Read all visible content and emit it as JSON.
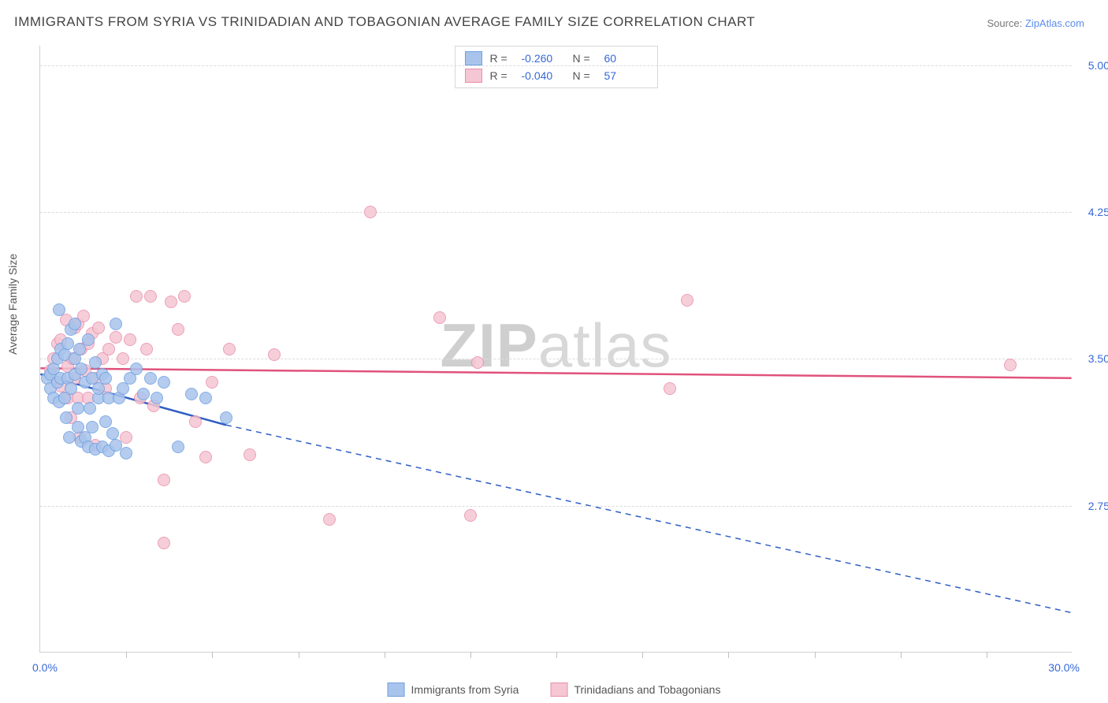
{
  "title": "IMMIGRANTS FROM SYRIA VS TRINIDADIAN AND TOBAGONIAN AVERAGE FAMILY SIZE CORRELATION CHART",
  "source_prefix": "Source: ",
  "source_link": "ZipAtlas.com",
  "ylabel": "Average Family Size",
  "watermark": {
    "bold": "ZIP",
    "light": "atlas"
  },
  "chart": {
    "type": "scatter",
    "xlim": [
      0,
      30
    ],
    "ylim": [
      2.0,
      5.1
    ],
    "xmin_label": "0.0%",
    "xmax_label": "30.0%",
    "ytick_labels": [
      "2.75",
      "3.50",
      "4.25",
      "5.00"
    ],
    "ytick_values": [
      2.75,
      3.5,
      4.25,
      5.0
    ],
    "xtick_values": [
      2.5,
      5.0,
      7.5,
      10.0,
      12.5,
      15.0,
      17.5,
      20.0,
      22.5,
      25.0,
      27.5
    ],
    "background": "#ffffff",
    "grid_color": "#dcdcdc",
    "axis_color": "#d0d0d0",
    "tick_label_color": "#3668d8",
    "marker_radius": 8,
    "marker_border": 1.5,
    "series": [
      {
        "name": "Immigrants from Syria",
        "color_fill": "#a9c4ec",
        "color_stroke": "#6f9fe0",
        "r_label": "R = ",
        "r_value": "-0.260",
        "n_label": "N = ",
        "n_value": "60",
        "trend": {
          "x1": 0,
          "y1": 3.42,
          "x2": 5.4,
          "y2": 3.16,
          "dash_x2": 30,
          "dash_y2": 2.2,
          "color": "#2f5ec4",
          "width": 2.5
        },
        "points": [
          [
            0.2,
            3.4
          ],
          [
            0.3,
            3.35
          ],
          [
            0.3,
            3.42
          ],
          [
            0.4,
            3.3
          ],
          [
            0.4,
            3.45
          ],
          [
            0.5,
            3.5
          ],
          [
            0.5,
            3.38
          ],
          [
            0.55,
            3.75
          ],
          [
            0.55,
            3.28
          ],
          [
            0.6,
            3.55
          ],
          [
            0.6,
            3.4
          ],
          [
            0.7,
            3.52
          ],
          [
            0.7,
            3.3
          ],
          [
            0.75,
            3.2
          ],
          [
            0.8,
            3.58
          ],
          [
            0.8,
            3.4
          ],
          [
            0.85,
            3.1
          ],
          [
            0.9,
            3.65
          ],
          [
            0.9,
            3.35
          ],
          [
            1.0,
            3.68
          ],
          [
            1.0,
            3.42
          ],
          [
            1.0,
            3.5
          ],
          [
            1.1,
            3.25
          ],
          [
            1.1,
            3.15
          ],
          [
            1.15,
            3.55
          ],
          [
            1.2,
            3.45
          ],
          [
            1.2,
            3.08
          ],
          [
            1.3,
            3.38
          ],
          [
            1.3,
            3.1
          ],
          [
            1.4,
            3.6
          ],
          [
            1.4,
            3.05
          ],
          [
            1.45,
            3.25
          ],
          [
            1.5,
            3.4
          ],
          [
            1.5,
            3.15
          ],
          [
            1.6,
            3.48
          ],
          [
            1.6,
            3.04
          ],
          [
            1.7,
            3.3
          ],
          [
            1.7,
            3.35
          ],
          [
            1.8,
            3.05
          ],
          [
            1.8,
            3.42
          ],
          [
            1.9,
            3.4
          ],
          [
            1.9,
            3.18
          ],
          [
            2.0,
            3.3
          ],
          [
            2.0,
            3.03
          ],
          [
            2.1,
            3.12
          ],
          [
            2.2,
            3.68
          ],
          [
            2.2,
            3.06
          ],
          [
            2.3,
            3.3
          ],
          [
            2.4,
            3.35
          ],
          [
            2.5,
            3.02
          ],
          [
            2.6,
            3.4
          ],
          [
            2.8,
            3.45
          ],
          [
            3.0,
            3.32
          ],
          [
            3.2,
            3.4
          ],
          [
            3.4,
            3.3
          ],
          [
            3.6,
            3.38
          ],
          [
            4.0,
            3.05
          ],
          [
            4.4,
            3.32
          ],
          [
            4.8,
            3.3
          ],
          [
            5.4,
            3.2
          ]
        ]
      },
      {
        "name": "Trinidadians and Tobagonians",
        "color_fill": "#f5c6d3",
        "color_stroke": "#e890ab",
        "r_label": "R = ",
        "r_value": "-0.040",
        "n_label": "N = ",
        "n_value": "57",
        "trend": {
          "x1": 0,
          "y1": 3.45,
          "x2": 30,
          "y2": 3.4,
          "color": "#e0527c",
          "width": 2.5
        },
        "points": [
          [
            0.3,
            3.44
          ],
          [
            0.4,
            3.5
          ],
          [
            0.5,
            3.38
          ],
          [
            0.5,
            3.58
          ],
          [
            0.6,
            3.36
          ],
          [
            0.6,
            3.6
          ],
          [
            0.7,
            3.3
          ],
          [
            0.75,
            3.7
          ],
          [
            0.8,
            3.46
          ],
          [
            0.8,
            3.3
          ],
          [
            0.9,
            3.2
          ],
          [
            0.95,
            3.5
          ],
          [
            1.0,
            3.66
          ],
          [
            1.0,
            3.4
          ],
          [
            1.1,
            3.68
          ],
          [
            1.1,
            3.3
          ],
          [
            1.15,
            3.1
          ],
          [
            1.2,
            3.55
          ],
          [
            1.25,
            3.72
          ],
          [
            1.3,
            3.44
          ],
          [
            1.4,
            3.58
          ],
          [
            1.4,
            3.3
          ],
          [
            1.5,
            3.63
          ],
          [
            1.6,
            3.06
          ],
          [
            1.6,
            3.4
          ],
          [
            1.7,
            3.66
          ],
          [
            1.8,
            3.5
          ],
          [
            1.9,
            3.35
          ],
          [
            2.0,
            3.55
          ],
          [
            2.2,
            3.61
          ],
          [
            2.4,
            3.5
          ],
          [
            2.5,
            3.1
          ],
          [
            2.6,
            3.6
          ],
          [
            2.8,
            3.82
          ],
          [
            2.9,
            3.3
          ],
          [
            3.1,
            3.55
          ],
          [
            3.2,
            3.82
          ],
          [
            3.3,
            3.26
          ],
          [
            3.6,
            2.56
          ],
          [
            3.6,
            2.88
          ],
          [
            3.8,
            3.79
          ],
          [
            4.0,
            3.65
          ],
          [
            4.2,
            3.82
          ],
          [
            4.5,
            3.18
          ],
          [
            4.8,
            3.0
          ],
          [
            5.0,
            3.38
          ],
          [
            5.5,
            3.55
          ],
          [
            6.1,
            3.01
          ],
          [
            6.8,
            3.52
          ],
          [
            8.4,
            2.68
          ],
          [
            9.6,
            4.25
          ],
          [
            11.6,
            3.71
          ],
          [
            12.5,
            2.7
          ],
          [
            12.7,
            3.48
          ],
          [
            18.3,
            3.35
          ],
          [
            18.8,
            3.8
          ],
          [
            28.2,
            3.47
          ]
        ]
      }
    ]
  }
}
